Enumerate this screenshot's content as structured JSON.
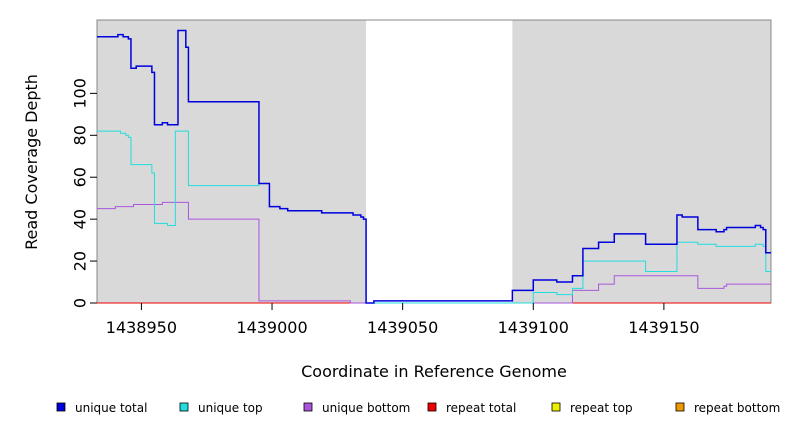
{
  "chart_data": {
    "type": "line",
    "title": "",
    "xlabel": "Coordinate in Reference Genome",
    "ylabel": "Read Coverage Depth",
    "xlim": [
      1438933,
      1439191
    ],
    "ylim": [
      0,
      135
    ],
    "x_ticks": [
      1438950,
      1439000,
      1439050,
      1439100,
      1439150
    ],
    "x_tick_labels": [
      "1438950",
      "1439000",
      "1439050",
      "1439100",
      "1439150"
    ],
    "y_ticks": [
      0,
      20,
      40,
      60,
      80,
      100
    ],
    "y_tick_labels": [
      "0",
      "20",
      "40",
      "60",
      "80",
      "100"
    ],
    "shaded_regions": [
      [
        1438933,
        1439036
      ],
      [
        1439092,
        1439191
      ]
    ],
    "legend_position": "bottom",
    "series": [
      {
        "name": "unique total",
        "color": "#0000dd",
        "points": [
          [
            1438933,
            127
          ],
          [
            1438941,
            127
          ],
          [
            1438941,
            128
          ],
          [
            1438943,
            128
          ],
          [
            1438943,
            127
          ],
          [
            1438945,
            127
          ],
          [
            1438945,
            126
          ],
          [
            1438946,
            126
          ],
          [
            1438946,
            112
          ],
          [
            1438948,
            112
          ],
          [
            1438948,
            113
          ],
          [
            1438954,
            113
          ],
          [
            1438954,
            110
          ],
          [
            1438955,
            110
          ],
          [
            1438955,
            85
          ],
          [
            1438958,
            85
          ],
          [
            1438958,
            86
          ],
          [
            1438960,
            86
          ],
          [
            1438960,
            85
          ],
          [
            1438964,
            85
          ],
          [
            1438964,
            130
          ],
          [
            1438967,
            130
          ],
          [
            1438967,
            122
          ],
          [
            1438968,
            122
          ],
          [
            1438968,
            96
          ],
          [
            1438995,
            96
          ],
          [
            1438995,
            57
          ],
          [
            1438999,
            57
          ],
          [
            1438999,
            46
          ],
          [
            1439003,
            46
          ],
          [
            1439003,
            45
          ],
          [
            1439006,
            45
          ],
          [
            1439006,
            44
          ],
          [
            1439019,
            44
          ],
          [
            1439019,
            43
          ],
          [
            1439031,
            43
          ],
          [
            1439031,
            42
          ],
          [
            1439034,
            42
          ],
          [
            1439034,
            41
          ],
          [
            1439035,
            41
          ],
          [
            1439035,
            40
          ],
          [
            1439036,
            40
          ],
          [
            1439036,
            0
          ],
          [
            1439039,
            0
          ],
          [
            1439039,
            1
          ],
          [
            1439092,
            1
          ],
          [
            1439092,
            6
          ],
          [
            1439100,
            6
          ],
          [
            1439100,
            11
          ],
          [
            1439109,
            11
          ],
          [
            1439109,
            10
          ],
          [
            1439115,
            10
          ],
          [
            1439115,
            13
          ],
          [
            1439119,
            13
          ],
          [
            1439119,
            26
          ],
          [
            1439125,
            26
          ],
          [
            1439125,
            29
          ],
          [
            1439131,
            29
          ],
          [
            1439131,
            33
          ],
          [
            1439143,
            33
          ],
          [
            1439143,
            28
          ],
          [
            1439155,
            28
          ],
          [
            1439155,
            42
          ],
          [
            1439157,
            42
          ],
          [
            1439157,
            41
          ],
          [
            1439163,
            41
          ],
          [
            1439163,
            35
          ],
          [
            1439170,
            35
          ],
          [
            1439170,
            34
          ],
          [
            1439173,
            34
          ],
          [
            1439173,
            35
          ],
          [
            1439174,
            35
          ],
          [
            1439174,
            36
          ],
          [
            1439185,
            36
          ],
          [
            1439185,
            37
          ],
          [
            1439187,
            37
          ],
          [
            1439187,
            36
          ],
          [
            1439188,
            36
          ],
          [
            1439188,
            35
          ],
          [
            1439189,
            35
          ],
          [
            1439189,
            24
          ],
          [
            1439191,
            24
          ]
        ]
      },
      {
        "name": "unique top",
        "color": "#22dddd",
        "points": [
          [
            1438933,
            82
          ],
          [
            1438942,
            82
          ],
          [
            1438942,
            81
          ],
          [
            1438944,
            81
          ],
          [
            1438944,
            80
          ],
          [
            1438945,
            80
          ],
          [
            1438945,
            79
          ],
          [
            1438946,
            79
          ],
          [
            1438946,
            66
          ],
          [
            1438954,
            66
          ],
          [
            1438954,
            62
          ],
          [
            1438955,
            62
          ],
          [
            1438955,
            38
          ],
          [
            1438960,
            38
          ],
          [
            1438960,
            37
          ],
          [
            1438963,
            37
          ],
          [
            1438963,
            82
          ],
          [
            1438968,
            82
          ],
          [
            1438968,
            56
          ],
          [
            1438995,
            56
          ],
          [
            1438995,
            57
          ],
          [
            1438999,
            57
          ],
          [
            1438999,
            46
          ],
          [
            1439003,
            46
          ],
          [
            1439003,
            45
          ],
          [
            1439006,
            45
          ],
          [
            1439006,
            44
          ],
          [
            1439019,
            44
          ],
          [
            1439019,
            43
          ],
          [
            1439031,
            43
          ],
          [
            1439031,
            42
          ],
          [
            1439034,
            42
          ],
          [
            1439034,
            41
          ],
          [
            1439035,
            41
          ],
          [
            1439035,
            40
          ],
          [
            1439036,
            40
          ],
          [
            1439036,
            0
          ],
          [
            1439100,
            0
          ],
          [
            1439100,
            5
          ],
          [
            1439109,
            5
          ],
          [
            1439109,
            4
          ],
          [
            1439115,
            4
          ],
          [
            1439115,
            7
          ],
          [
            1439119,
            7
          ],
          [
            1439119,
            20
          ],
          [
            1439143,
            20
          ],
          [
            1439143,
            15
          ],
          [
            1439155,
            15
          ],
          [
            1439155,
            29
          ],
          [
            1439163,
            29
          ],
          [
            1439163,
            28
          ],
          [
            1439170,
            28
          ],
          [
            1439170,
            27
          ],
          [
            1439185,
            27
          ],
          [
            1439185,
            28
          ],
          [
            1439188,
            28
          ],
          [
            1439188,
            27
          ],
          [
            1439189,
            27
          ],
          [
            1439189,
            15
          ],
          [
            1439191,
            15
          ]
        ]
      },
      {
        "name": "unique bottom",
        "color": "#aa55dd",
        "points": [
          [
            1438933,
            45
          ],
          [
            1438940,
            45
          ],
          [
            1438940,
            46
          ],
          [
            1438947,
            46
          ],
          [
            1438947,
            47
          ],
          [
            1438958,
            47
          ],
          [
            1438958,
            48
          ],
          [
            1438968,
            48
          ],
          [
            1438968,
            40
          ],
          [
            1438995,
            40
          ],
          [
            1438995,
            1
          ],
          [
            1439030,
            1
          ],
          [
            1439030,
            0
          ],
          [
            1439115,
            0
          ],
          [
            1439115,
            6
          ],
          [
            1439125,
            6
          ],
          [
            1439125,
            9
          ],
          [
            1439131,
            9
          ],
          [
            1439131,
            13
          ],
          [
            1439163,
            13
          ],
          [
            1439163,
            7
          ],
          [
            1439173,
            7
          ],
          [
            1439173,
            8
          ],
          [
            1439174,
            8
          ],
          [
            1439174,
            9
          ],
          [
            1439191,
            9
          ]
        ]
      },
      {
        "name": "repeat total",
        "color": "#ee0000",
        "points": [
          [
            1438933,
            0
          ],
          [
            1439191,
            0
          ]
        ]
      },
      {
        "name": "repeat top",
        "color": "#eeee00",
        "points": [
          [
            1438933,
            0
          ],
          [
            1439191,
            0
          ]
        ]
      },
      {
        "name": "repeat bottom",
        "color": "#ee9900",
        "points": [
          [
            1438933,
            0
          ],
          [
            1439191,
            0
          ]
        ]
      }
    ]
  }
}
